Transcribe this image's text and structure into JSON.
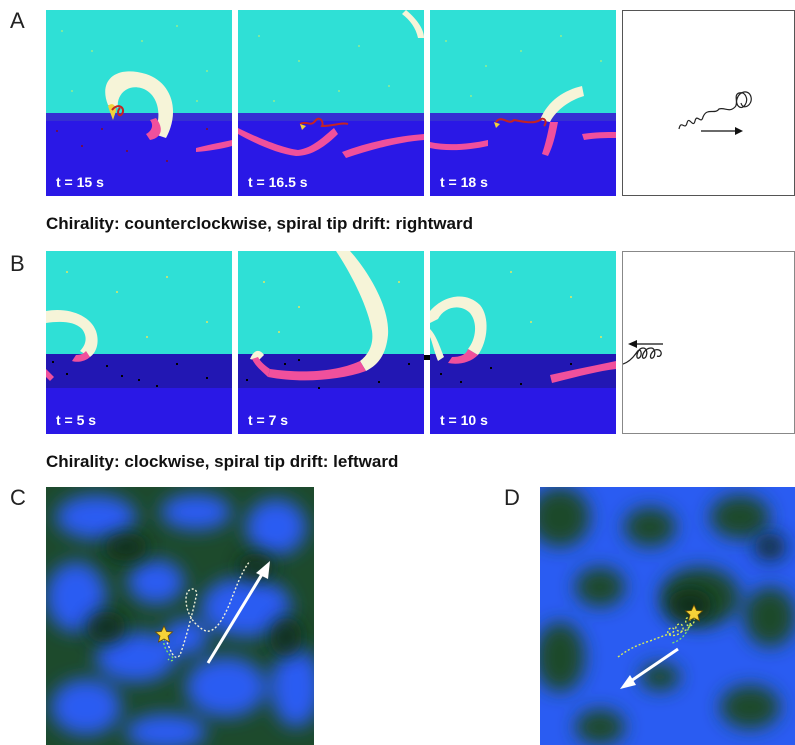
{
  "figure": {
    "row_a": {
      "label": "A",
      "frames": [
        {
          "time": "t =  15 s"
        },
        {
          "time": "t =  16.5 s"
        },
        {
          "time": "t =  18 s"
        }
      ],
      "caption": "Chirality: counterclockwise, spiral tip drift: rightward"
    },
    "row_b": {
      "label": "B",
      "frames": [
        {
          "time": "t =  5 s"
        },
        {
          "time": "t =  7 s"
        },
        {
          "time": "t =  10 s"
        }
      ],
      "caption": "Chirality: clockwise, spiral tip drift: leftward"
    },
    "panel_c": {
      "label": "C"
    },
    "panel_d": {
      "label": "D"
    }
  },
  "colors": {
    "upper_medium": "#2fe0d6",
    "lower_medium": "#2a18e6",
    "wave": "#f6f4d8",
    "wave_in_lower": "#f0509c",
    "map_bg": "#1d4a2c",
    "map_blue": "#2a5cf2",
    "star": "#f7d238",
    "tip_trace": "#d9ec5a"
  }
}
